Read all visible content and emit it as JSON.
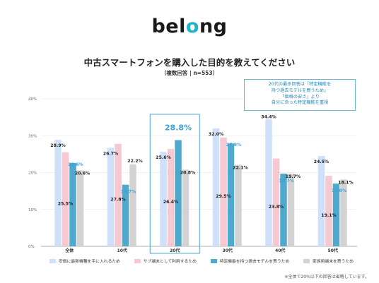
{
  "logo": {
    "pre": "bel",
    "accent": "o",
    "post": "ng"
  },
  "header": {
    "title": "中古スマートフォンを購入した目的を教えてください",
    "subtitle": "（複数回答 | n=553）"
  },
  "callout": {
    "lines": [
      "20代の最多回答は「特定機能を",
      "持つ過去モデルを買うため」",
      "「価格の安さ」より",
      "自分に合った特定機能を重視"
    ]
  },
  "footnote": "※全体で20%以下の回答は省略しています。",
  "colors": {
    "series": [
      "#cfe0fb",
      "#f6c9d1",
      "#4ea9cd",
      "#d3d3d3"
    ],
    "highlight_label": "#3ea3d4",
    "highlight_box": "#3aa0cf"
  },
  "chart_data": {
    "type": "bar",
    "categories": [
      "全体",
      "10代",
      "20代",
      "30代",
      "40代",
      "50代"
    ],
    "series": [
      {
        "name": "安価に最新機種を手に入れるため",
        "values": [
          28.9,
          26.7,
          25.6,
          32.0,
          34.4,
          24.5
        ]
      },
      {
        "name": "サブ端末として利用するため",
        "values": [
          25.5,
          27.8,
          26.4,
          29.5,
          23.8,
          19.1
        ]
      },
      {
        "name": "特定機能を持つ過去モデルを買うため",
        "values": [
          22.6,
          16.7,
          28.8,
          27.9,
          19.7,
          17.0
        ]
      },
      {
        "name": "家族用端末を買うため",
        "values": [
          20.6,
          22.2,
          20.8,
          22.1,
          19.7,
          18.1
        ]
      }
    ],
    "ylim": [
      0,
      40
    ],
    "yticks": [
      "0%",
      "10%",
      "20%",
      "30%",
      "40%"
    ],
    "highlight_category": "20代",
    "highlight_series": "特定機能を持つ過去モデルを買うため",
    "grid": true,
    "legend": "bottom"
  }
}
